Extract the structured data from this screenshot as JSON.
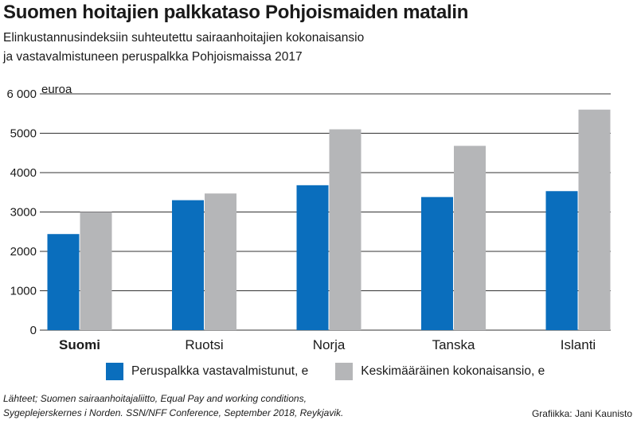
{
  "header": {
    "title": "Suomen hoitajien palkkataso Pohjoismaiden matalin",
    "subtitle_line1": "Elinkustannusindeksiin suhteutettu sairaanhoitajien kokonaisansio",
    "subtitle_line2": "ja vastavalmistuneen peruspalkka Pohjoismaissa 2017"
  },
  "footer": {
    "sources_line1": "Lähteet; Suomen sairaanhoitajaliitto, Equal Pay and working conditions,",
    "sources_line2": "Sygeplejerskernes i Norden. SSN/NFF Conference, September 2018, Reykjavik.",
    "credit": "Grafiikka: Jani Kaunisto"
  },
  "colors": {
    "series1": "#0a6ebd",
    "series2": "#b5b6b8",
    "grid": "#333333"
  },
  "chart_data": {
    "type": "bar",
    "title": "Suomen hoitajien palkkataso Pohjoismaiden matalin",
    "ylabel": "euroa",
    "xlabel": "",
    "categories": [
      "Suomi",
      "Ruotsi",
      "Norja",
      "Tanska",
      "Islanti"
    ],
    "highlighted_category": "Suomi",
    "series": [
      {
        "name": "Peruspalkka vastavalmistunut, e",
        "values": [
          2440,
          3300,
          3680,
          3380,
          3530
        ]
      },
      {
        "name": "Keskimääräinen kokonaisansio, e",
        "values": [
          3000,
          3470,
          5100,
          4680,
          5600
        ]
      }
    ],
    "ylim": [
      0,
      6000
    ],
    "yticks": [
      0,
      1000,
      2000,
      3000,
      4000,
      5000,
      6000
    ],
    "ytick_labels": [
      "0",
      "1000",
      "2000",
      "3000",
      "4000",
      "5000",
      "6 000"
    ],
    "grid": true,
    "legend": "bottom"
  }
}
